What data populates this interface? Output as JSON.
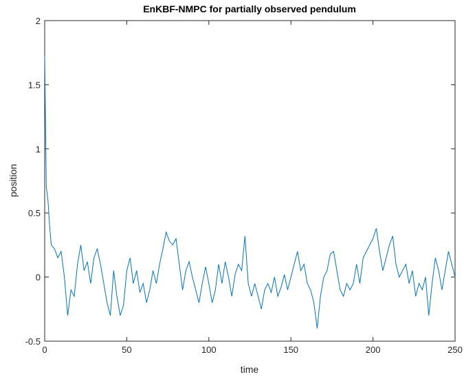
{
  "chart_data": {
    "type": "line",
    "title": "EnKBF-NMPC for partially observed pendulum",
    "x_label": "time",
    "y_label": "position",
    "xlim": [
      0,
      250
    ],
    "xticks": [
      0,
      50,
      100,
      150,
      200,
      250
    ],
    "ylim": [
      -0.5,
      2
    ],
    "yticks": [
      -0.5,
      0,
      0.5,
      1,
      1.5,
      2
    ],
    "series": [
      {
        "color": "#0072bd",
        "x": [
          0,
          0.5,
          1,
          2,
          3,
          4,
          6,
          8,
          10,
          12,
          14,
          16,
          18,
          20,
          22,
          24,
          26,
          28,
          30,
          32,
          34,
          36,
          38,
          40,
          42,
          44,
          46,
          48,
          50,
          52,
          54,
          56,
          58,
          60,
          62,
          64,
          66,
          68,
          70,
          72,
          74,
          76,
          78,
          80,
          82,
          84,
          86,
          88,
          90,
          92,
          94,
          96,
          98,
          100,
          102,
          104,
          106,
          108,
          110,
          112,
          114,
          116,
          118,
          120,
          122,
          124,
          126,
          128,
          130,
          132,
          134,
          136,
          138,
          140,
          142,
          144,
          146,
          148,
          150,
          152,
          154,
          156,
          158,
          160,
          162,
          164,
          166,
          168,
          170,
          172,
          174,
          176,
          178,
          180,
          182,
          184,
          186,
          188,
          190,
          192,
          194,
          196,
          198,
          200,
          202,
          204,
          206,
          208,
          210,
          212,
          214,
          216,
          218,
          220,
          222,
          224,
          226,
          228,
          230,
          232,
          234,
          236,
          238,
          240,
          242,
          244,
          246,
          248,
          250
        ],
        "values": [
          1.72,
          1.2,
          0.7,
          0.6,
          0.4,
          0.25,
          0.22,
          0.15,
          0.2,
          0.0,
          -0.3,
          -0.1,
          -0.15,
          0.1,
          0.25,
          0.05,
          0.12,
          -0.05,
          0.15,
          0.22,
          0.1,
          -0.05,
          -0.2,
          -0.3,
          0.05,
          -0.15,
          -0.3,
          -0.22,
          0.05,
          0.15,
          -0.05,
          0.05,
          -0.12,
          -0.05,
          -0.2,
          -0.1,
          0.05,
          -0.05,
          0.1,
          0.22,
          0.35,
          0.28,
          0.25,
          0.3,
          0.1,
          -0.1,
          0.05,
          0.12,
          0.0,
          -0.1,
          -0.2,
          -0.05,
          0.08,
          -0.05,
          -0.2,
          -0.1,
          0.1,
          -0.05,
          0.12,
          0.0,
          -0.15,
          0.02,
          0.1,
          0.05,
          0.32,
          -0.05,
          -0.15,
          -0.05,
          -0.15,
          -0.25,
          -0.1,
          -0.05,
          -0.12,
          0.0,
          -0.15,
          -0.08,
          0.02,
          -0.1,
          0.0,
          0.1,
          0.2,
          0.05,
          0.1,
          -0.05,
          -0.1,
          -0.2,
          -0.4,
          -0.15,
          0.0,
          0.05,
          0.18,
          0.2,
          0.05,
          -0.1,
          -0.15,
          -0.05,
          -0.1,
          -0.05,
          0.1,
          -0.05,
          0.15,
          0.2,
          0.25,
          0.3,
          0.38,
          0.2,
          0.05,
          0.15,
          0.25,
          0.32,
          0.1,
          0.0,
          0.05,
          0.1,
          -0.05,
          0.05,
          -0.15,
          -0.05,
          -0.1,
          0.0,
          -0.3,
          -0.05,
          0.15,
          0.05,
          -0.1,
          0.05,
          0.2,
          0.1,
          0.0
        ]
      }
    ]
  }
}
